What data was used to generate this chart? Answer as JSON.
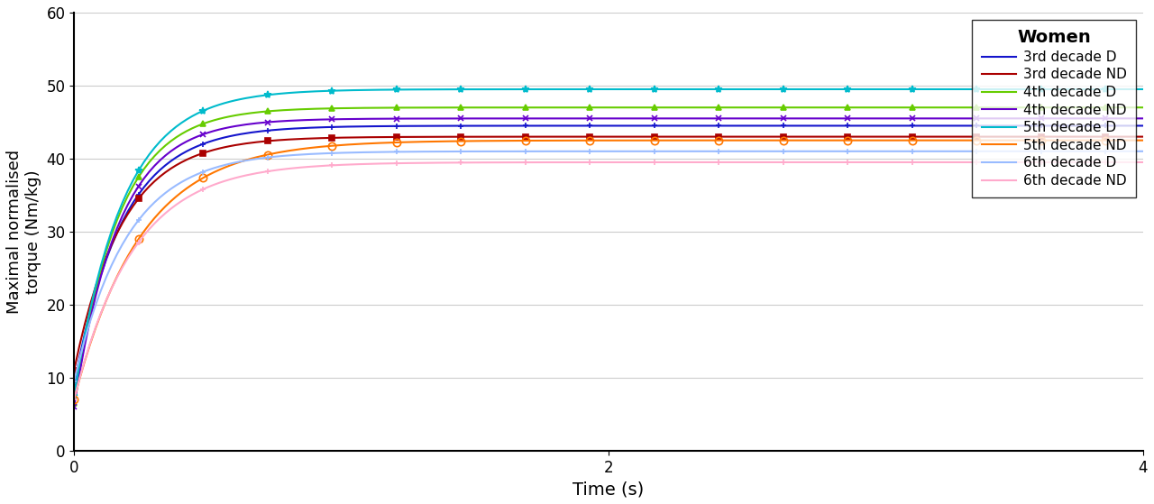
{
  "title": "Women",
  "xlabel": "Time (s)",
  "ylabel": "Maximal normalised\ntorque (Nm/kg)",
  "xlim": [
    0,
    4
  ],
  "ylim": [
    0,
    60
  ],
  "yticks": [
    0,
    10,
    20,
    30,
    40,
    50,
    60
  ],
  "xticks": [
    0,
    2,
    4
  ],
  "series": [
    {
      "label": "3rd decade D",
      "color": "#1515CC",
      "marker": "+",
      "a": 44.5,
      "b": 9.0,
      "k": 5.5
    },
    {
      "label": "3rd decade ND",
      "color": "#AA0000",
      "marker": "s",
      "a": 43.0,
      "b": 11.0,
      "k": 5.5
    },
    {
      "label": "4th decade D",
      "color": "#66CC00",
      "marker": "^",
      "a": 47.0,
      "b": 6.5,
      "k": 6.0
    },
    {
      "label": "4th decade ND",
      "color": "#6600CC",
      "marker": "x",
      "a": 45.5,
      "b": 6.0,
      "k": 6.0
    },
    {
      "label": "5th decade D",
      "color": "#00BBCC",
      "marker": "*",
      "a": 49.5,
      "b": 7.5,
      "k": 5.5
    },
    {
      "label": "5th decade ND",
      "color": "#FF7700",
      "marker": "o",
      "a": 42.5,
      "b": 7.0,
      "k": 4.0
    },
    {
      "label": "6th decade D",
      "color": "#99BBFF",
      "marker": "+",
      "a": 41.0,
      "b": 9.5,
      "k": 5.0
    },
    {
      "label": "6th decade ND",
      "color": "#FFAACC",
      "marker": "+",
      "a": 39.5,
      "b": 7.0,
      "k": 4.5
    }
  ],
  "background_color": "#FFFFFF",
  "grid_color": "#CCCCCC",
  "n_points": 200,
  "marker_every": 12
}
